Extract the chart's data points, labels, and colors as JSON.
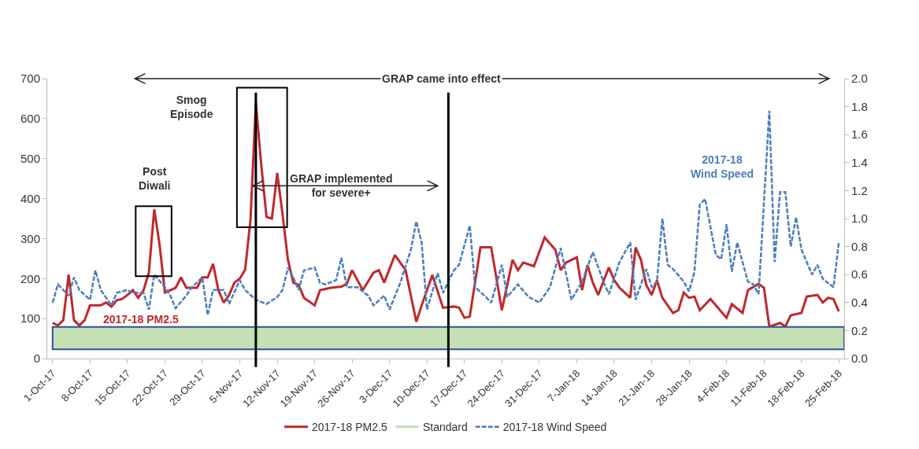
{
  "chart_data": {
    "type": "line",
    "xlim": [
      "2017-09-30",
      "2018-02-26"
    ],
    "xticks": [
      {
        "value": "2017-10-01",
        "label": "1-Oct-17"
      },
      {
        "value": "2017-10-08",
        "label": "8-Oct-17"
      },
      {
        "value": "2017-10-15",
        "label": "15-Oct-17"
      },
      {
        "value": "2017-10-22",
        "label": "22-Oct-17"
      },
      {
        "value": "2017-10-29",
        "label": "29-Oct-17"
      },
      {
        "value": "2017-11-05",
        "label": "5-Nov-17"
      },
      {
        "value": "2017-11-12",
        "label": "12-Nov-17"
      },
      {
        "value": "2017-11-19",
        "label": "19-Nov-17"
      },
      {
        "value": "2017-11-26",
        "label": "26-Nov-17"
      },
      {
        "value": "2017-12-03",
        "label": "3-Dec-17"
      },
      {
        "value": "2017-12-10",
        "label": "10-Dec-17"
      },
      {
        "value": "2017-12-17",
        "label": "17-Dec-17"
      },
      {
        "value": "2017-12-24",
        "label": "24-Dec-17"
      },
      {
        "value": "2017-12-31",
        "label": "31-Dec-17"
      },
      {
        "value": "2018-01-07",
        "label": "7-Jan-18"
      },
      {
        "value": "2018-01-14",
        "label": "14-Jan-18"
      },
      {
        "value": "2018-01-21",
        "label": "21-Jan-18"
      },
      {
        "value": "2018-01-28",
        "label": "28-Jan-18"
      },
      {
        "value": "2018-02-04",
        "label": "4-Feb-18"
      },
      {
        "value": "2018-02-11",
        "label": "11-Feb-18"
      },
      {
        "value": "2018-02-18",
        "label": "18-Feb-18"
      },
      {
        "value": "2018-02-25",
        "label": "25-Feb-18"
      }
    ],
    "ylim": [
      0,
      700
    ],
    "yticks": [
      0,
      100,
      200,
      300,
      400,
      500,
      600,
      700
    ],
    "y2lim": [
      0,
      2
    ],
    "y2ticks": [
      {
        "value": 0,
        "label": "0.0"
      },
      {
        "value": 0.2,
        "label": "0.2"
      },
      {
        "value": 0.4,
        "label": "0.4"
      },
      {
        "value": 0.6,
        "label": "0.6"
      },
      {
        "value": 0.8,
        "label": "0.8"
      },
      {
        "value": 1,
        "label": "1.0"
      },
      {
        "value": 1.2,
        "label": "1.2"
      },
      {
        "value": 1.4,
        "label": "1.4"
      },
      {
        "value": 1.6,
        "label": "1.6"
      },
      {
        "value": 1.8,
        "label": "1.8"
      },
      {
        "value": 2,
        "label": "2.0"
      }
    ],
    "legend": "bottom",
    "series": [
      {
        "name": "2017-18 PM2.5",
        "color": "#c0282d",
        "line_style": "solid",
        "x": [
          "2017-10-01",
          "2017-10-02",
          "2017-10-03",
          "2017-10-04",
          "2017-10-05",
          "2017-10-06",
          "2017-10-07",
          "2017-10-08",
          "2017-10-10",
          "2017-10-11",
          "2017-10-12",
          "2017-10-13",
          "2017-10-14",
          "2017-10-15",
          "2017-10-16",
          "2017-10-17",
          "2017-10-18",
          "2017-10-19",
          "2017-10-20",
          "2017-10-21",
          "2017-10-22",
          "2017-10-24",
          "2017-10-25",
          "2017-10-26",
          "2017-10-28",
          "2017-10-29",
          "2017-10-30",
          "2017-10-31",
          "2017-11-01",
          "2017-11-02",
          "2017-11-03",
          "2017-11-04",
          "2017-11-05",
          "2017-11-06",
          "2017-11-07",
          "2017-11-08",
          "2017-11-09",
          "2017-11-10",
          "2017-11-11",
          "2017-11-12",
          "2017-11-13",
          "2017-11-14",
          "2017-11-15",
          "2017-11-16",
          "2017-11-17",
          "2017-11-19",
          "2017-11-20",
          "2017-11-22",
          "2017-11-24",
          "2017-11-25",
          "2017-11-26",
          "2017-11-28",
          "2017-11-30",
          "2017-12-01",
          "2017-12-02",
          "2017-12-04",
          "2017-12-06",
          "2017-12-08",
          "2017-12-09",
          "2017-12-11",
          "2017-12-13",
          "2017-12-15",
          "2017-12-16",
          "2017-12-17",
          "2017-12-18",
          "2017-12-20",
          "2017-12-22",
          "2017-12-24",
          "2017-12-26",
          "2017-12-27",
          "2017-12-28",
          "2017-12-30",
          "2018-01-01",
          "2018-01-03",
          "2018-01-04",
          "2018-01-05",
          "2018-01-07",
          "2018-01-08",
          "2018-01-09",
          "2018-01-10",
          "2018-01-11",
          "2018-01-13",
          "2018-01-14",
          "2018-01-15",
          "2018-01-17",
          "2018-01-18",
          "2018-01-19",
          "2018-01-20",
          "2018-01-21",
          "2018-01-22",
          "2018-01-23",
          "2018-01-25",
          "2018-01-26",
          "2018-01-27",
          "2018-01-28",
          "2018-01-29",
          "2018-01-30",
          "2018-02-01",
          "2018-02-04",
          "2018-02-05",
          "2018-02-07",
          "2018-02-08",
          "2018-02-10",
          "2018-02-11",
          "2018-02-12",
          "2018-02-14",
          "2018-02-15",
          "2018-02-16",
          "2018-02-18",
          "2018-02-19",
          "2018-02-21",
          "2018-02-22",
          "2018-02-23",
          "2018-02-24",
          "2018-02-25"
        ],
        "values": [
          89,
          83,
          96,
          210,
          96,
          83,
          96,
          133,
          133,
          140,
          130,
          146,
          149,
          159,
          171,
          152,
          171,
          215,
          373,
          285,
          165,
          177,
          203,
          177,
          177,
          203,
          203,
          237,
          171,
          140,
          159,
          190,
          200,
          222,
          347,
          640,
          486,
          354,
          350,
          464,
          360,
          247,
          190,
          184,
          152,
          133,
          171,
          177,
          180,
          187,
          221,
          171,
          215,
          221,
          190,
          259,
          221,
          92,
          133,
          209,
          127,
          130,
          127,
          102,
          105,
          278,
          278,
          121,
          247,
          221,
          240,
          231,
          303,
          272,
          221,
          240,
          253,
          171,
          234,
          190,
          159,
          228,
          196,
          177,
          152,
          278,
          247,
          184,
          159,
          196,
          152,
          114,
          121,
          165,
          152,
          155,
          121,
          149,
          102,
          136,
          114,
          171,
          187,
          177,
          80,
          89,
          80,
          108,
          114,
          155,
          159,
          140,
          152,
          149,
          118
        ]
      },
      {
        "name": "2017-18 Wind Speed",
        "color": "#4a7ebb",
        "line_style": "dashed",
        "axis": "y2",
        "x": [
          "2017-10-01",
          "2017-10-02",
          "2017-10-03",
          "2017-10-04",
          "2017-10-05",
          "2017-10-06",
          "2017-10-08",
          "2017-10-09",
          "2017-10-10",
          "2017-10-12",
          "2017-10-13",
          "2017-10-15",
          "2017-10-16",
          "2017-10-18",
          "2017-10-19",
          "2017-10-20",
          "2017-10-22",
          "2017-10-23",
          "2017-10-24",
          "2017-10-26",
          "2017-10-27",
          "2017-10-29",
          "2017-10-30",
          "2017-10-31",
          "2017-11-02",
          "2017-11-03",
          "2017-11-05",
          "2017-11-06",
          "2017-11-08",
          "2017-11-10",
          "2017-11-12",
          "2017-11-13",
          "2017-11-14",
          "2017-11-15",
          "2017-11-16",
          "2017-11-17",
          "2017-11-19",
          "2017-11-20",
          "2017-11-21",
          "2017-11-23",
          "2017-11-24",
          "2017-11-25",
          "2017-11-27",
          "2017-11-29",
          "2017-11-30",
          "2017-12-02",
          "2017-12-03",
          "2017-12-05",
          "2017-12-07",
          "2017-12-08",
          "2017-12-09",
          "2017-12-10",
          "2017-12-12",
          "2017-12-13",
          "2017-12-15",
          "2017-12-16",
          "2017-12-18",
          "2017-12-19",
          "2017-12-21",
          "2017-12-22",
          "2017-12-24",
          "2017-12-25",
          "2017-12-27",
          "2017-12-29",
          "2017-12-31",
          "2018-01-02",
          "2018-01-04",
          "2018-01-06",
          "2018-01-08",
          "2018-01-10",
          "2018-01-12",
          "2018-01-13",
          "2018-01-15",
          "2018-01-17",
          "2018-01-18",
          "2018-01-20",
          "2018-01-21",
          "2018-01-22",
          "2018-01-23",
          "2018-01-24",
          "2018-01-25",
          "2018-01-27",
          "2018-01-28",
          "2018-01-29",
          "2018-01-30",
          "2018-01-31",
          "2018-02-02",
          "2018-02-03",
          "2018-02-04",
          "2018-02-05",
          "2018-02-06",
          "2018-02-08",
          "2018-02-09",
          "2018-02-10",
          "2018-02-12",
          "2018-02-13",
          "2018-02-14",
          "2018-02-15",
          "2018-02-16",
          "2018-02-17",
          "2018-02-18",
          "2018-02-20",
          "2018-02-21",
          "2018-02-22",
          "2018-02-24",
          "2018-02-25"
        ],
        "values": [
          0.4,
          0.53,
          0.49,
          0.45,
          0.58,
          0.49,
          0.42,
          0.63,
          0.49,
          0.38,
          0.47,
          0.49,
          0.47,
          0.47,
          0.35,
          0.6,
          0.51,
          0.45,
          0.36,
          0.45,
          0.51,
          0.58,
          0.31,
          0.49,
          0.49,
          0.39,
          0.56,
          0.49,
          0.42,
          0.39,
          0.44,
          0.49,
          0.65,
          0.58,
          0.49,
          0.63,
          0.65,
          0.54,
          0.53,
          0.56,
          0.72,
          0.51,
          0.51,
          0.45,
          0.38,
          0.45,
          0.35,
          0.54,
          0.78,
          0.98,
          0.83,
          0.35,
          0.61,
          0.47,
          0.63,
          0.67,
          0.95,
          0.51,
          0.44,
          0.4,
          0.67,
          0.44,
          0.53,
          0.44,
          0.4,
          0.51,
          0.79,
          0.42,
          0.55,
          0.76,
          0.55,
          0.46,
          0.69,
          0.83,
          0.42,
          0.64,
          0.51,
          0.55,
          1.0,
          0.67,
          0.64,
          0.55,
          0.48,
          0.62,
          1.1,
          1.14,
          0.74,
          0.71,
          0.96,
          0.62,
          0.83,
          0.55,
          0.53,
          0.46,
          1.77,
          0.69,
          1.19,
          1.19,
          0.8,
          1.01,
          0.78,
          0.6,
          0.67,
          0.57,
          0.51,
          0.83
        ]
      }
    ],
    "bands": [
      {
        "axis": "y",
        "from": 23,
        "to": 79,
        "label": "Standard",
        "color": "#c5e0b4"
      }
    ],
    "ref_lines": [
      {
        "axis": "x",
        "value": "2017-11-08",
        "color": "#000000"
      },
      {
        "axis": "x",
        "value": "2017-12-14",
        "color": "#000000"
      }
    ],
    "annotations": [
      "GRAP came into effect",
      "Post\nDiwali",
      "Smog\nEpisode",
      "GRAP implemented\nfor severe+",
      "2017-18 PM2.5",
      "2017-18\nWind Speed"
    ]
  }
}
